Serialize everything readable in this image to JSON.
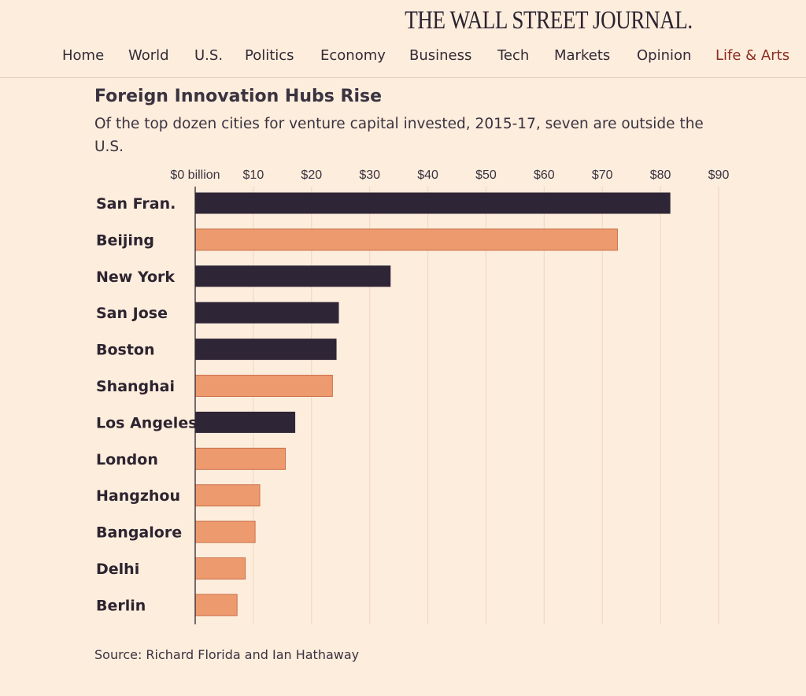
{
  "masthead": "THE WALL STREET JOURNAL.",
  "nav": {
    "items": [
      "Home",
      "World",
      "U.S.",
      "Politics",
      "Economy",
      "Business",
      "Tech",
      "Markets",
      "Opinion",
      "Life & Arts"
    ],
    "active": "Life & Arts"
  },
  "colors": {
    "us": "#2e2536",
    "foreign": "#ee9a6f",
    "foreign_outline": "#c9704a",
    "active_nav": "#8a2b20"
  },
  "chart_data": {
    "type": "bar",
    "orientation": "horizontal",
    "title": "Foreign Innovation Hubs Rise",
    "subtitle": "Of the top dozen cities for venture capital invested, 2015-17, seven are outside the U.S.",
    "xlabel": "",
    "ylabel": "",
    "xlim": [
      0,
      90
    ],
    "ticks": [
      0,
      10,
      20,
      30,
      40,
      50,
      60,
      70,
      80,
      90
    ],
    "tick_labels": [
      "$0 billion",
      "$10",
      "$20",
      "$30",
      "$40",
      "$50",
      "$60",
      "$70",
      "$80",
      "$90"
    ],
    "grid": true,
    "categories": [
      "San Fran.",
      "Beijing",
      "New York",
      "San Jose",
      "Boston",
      "Shanghai",
      "Los Angeles",
      "London",
      "Hangzhou",
      "Bangalore",
      "Delhi",
      "Berlin"
    ],
    "values": [
      81.7,
      72.6,
      33.6,
      24.7,
      24.3,
      23.6,
      17.2,
      15.5,
      11.1,
      10.3,
      8.6,
      7.2
    ],
    "group": [
      "us",
      "foreign",
      "us",
      "us",
      "us",
      "foreign",
      "us",
      "foreign",
      "foreign",
      "foreign",
      "foreign",
      "foreign"
    ],
    "source": "Source: Richard Florida and Ian Hathaway"
  }
}
